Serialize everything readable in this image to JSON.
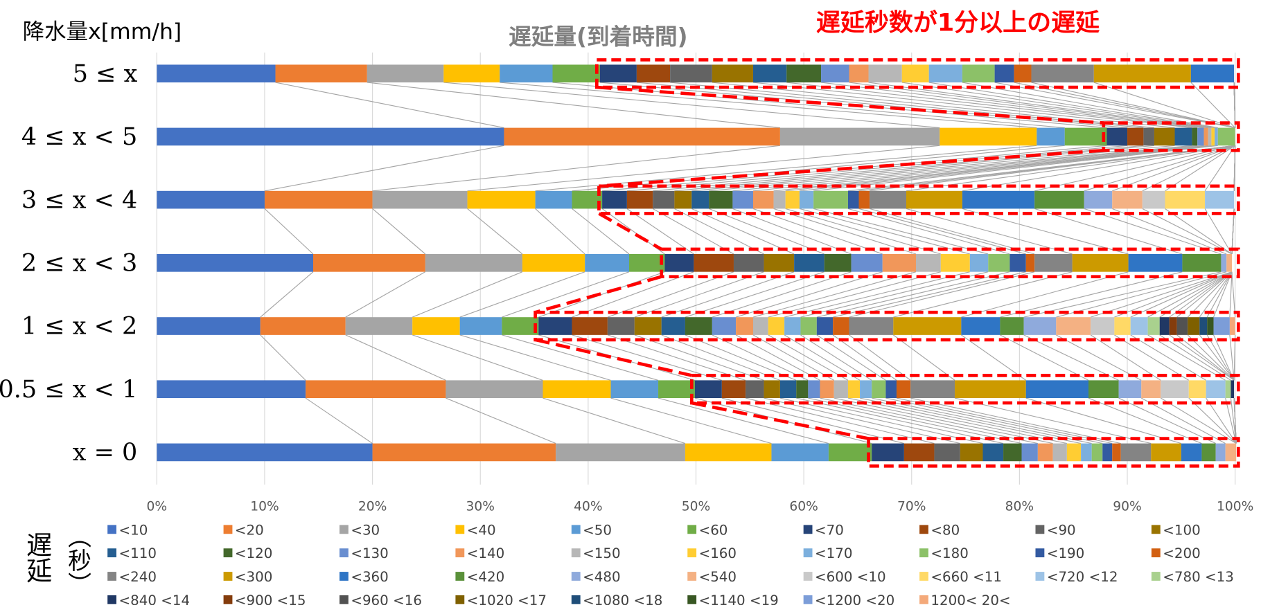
{
  "chart_data": {
    "type": "stacked_barh",
    "title": "遅延量(到着時間)",
    "y_axis_label": "降水量x[mm/h]",
    "annotation": "遅延秒数が1分以上の遅延",
    "legend_title": "遅延",
    "legend_unit": "（秒）",
    "categories": [
      "5 ≤ x",
      "4 ≤ x < 5",
      "3 ≤ x < 4",
      "2 ≤ x < 3",
      "1 ≤ x < 2",
      "0.5 ≤ x < 1",
      "x = 0"
    ],
    "xlim": [
      0,
      100
    ],
    "xticks": [
      {
        "value": 0,
        "label": "0%"
      },
      {
        "value": 10,
        "label": "10%"
      },
      {
        "value": 20,
        "label": "20%"
      },
      {
        "value": 30,
        "label": "30%"
      },
      {
        "value": 40,
        "label": "40%"
      },
      {
        "value": 50,
        "label": "50%"
      },
      {
        "value": 60,
        "label": "60%"
      },
      {
        "value": 70,
        "label": "70%"
      },
      {
        "value": 80,
        "label": "80%"
      },
      {
        "value": 90,
        "label": "90%"
      },
      {
        "value": 100,
        "label": "100%"
      }
    ],
    "grid": true,
    "series_lines": true,
    "series": [
      {
        "name": "<10",
        "color": "#4472C4",
        "values": [
          11,
          32.2,
          10,
          14.5,
          9.6,
          13.8,
          20
        ]
      },
      {
        "name": "<20",
        "color": "#ED7D31",
        "values": [
          8.5,
          25.6,
          10,
          10.4,
          7.9,
          13.0,
          17
        ]
      },
      {
        "name": "<30",
        "color": "#A5A5A5",
        "values": [
          7.1,
          14.8,
          8.8,
          9.0,
          6.2,
          9.0,
          12
        ]
      },
      {
        "name": "<40",
        "color": "#FFC000",
        "values": [
          5.2,
          9.0,
          6.3,
          5.8,
          4.4,
          6.3,
          8
        ]
      },
      {
        "name": "<50",
        "color": "#5B9BD5",
        "values": [
          4.9,
          2.6,
          3.4,
          4.1,
          3.9,
          4.4,
          5.3
        ]
      },
      {
        "name": "<60",
        "color": "#70AD47",
        "values": [
          4.4,
          3.9,
          2.8,
          3.3,
          3.4,
          3.4,
          4
        ]
      },
      {
        "name": "<70",
        "color": "#264478",
        "values": [
          3.4,
          1.9,
          2.3,
          2.7,
          3.1,
          2.5,
          3.0
        ]
      },
      {
        "name": "<80",
        "color": "#9E480E",
        "values": [
          3.1,
          1.5,
          2.4,
          3.7,
          3.3,
          2.2,
          2.8
        ]
      },
      {
        "name": "<90",
        "color": "#636363",
        "values": [
          3.9,
          1.0,
          2.0,
          2.8,
          2.5,
          1.7,
          2.4
        ]
      },
      {
        "name": "<100",
        "color": "#997300",
        "values": [
          3.8,
          1.9,
          1.6,
          2.8,
          2.5,
          1.5,
          2.1
        ]
      },
      {
        "name": "<110",
        "color": "#255E91",
        "values": [
          3.1,
          1.6,
          1.6,
          2.8,
          2.2,
          1.5,
          1.9
        ]
      },
      {
        "name": "<120",
        "color": "#43682B",
        "values": [
          3.2,
          0.5,
          2.2,
          2.5,
          2.5,
          1.1,
          1.7
        ]
      },
      {
        "name": "<130",
        "color": "#698ED0",
        "values": [
          2.6,
          0.6,
          1.9,
          2.9,
          2.2,
          1.1,
          1.5
        ]
      },
      {
        "name": "<140",
        "color": "#F1975A",
        "values": [
          1.8,
          0.4,
          1.9,
          3.1,
          1.6,
          1.3,
          1.4
        ]
      },
      {
        "name": "<150",
        "color": "#B7B7B7",
        "values": [
          3.1,
          0.3,
          1.1,
          2.3,
          1.4,
          1.3,
          1.3
        ]
      },
      {
        "name": "<160",
        "color": "#FFCD33",
        "values": [
          2.5,
          0.3,
          1.3,
          2.7,
          1.5,
          1.1,
          1.3
        ]
      },
      {
        "name": "<170",
        "color": "#7CAFDD",
        "values": [
          3.1,
          0.3,
          1.3,
          1.7,
          1.5,
          1.1,
          1.0
        ]
      },
      {
        "name": "<180",
        "color": "#8CC168",
        "values": [
          3.0,
          1.6,
          3.2,
          2.0,
          1.5,
          1.3,
          1.0
        ]
      },
      {
        "name": "<190",
        "color": "#335AA1",
        "values": [
          1.8,
          0,
          1.0,
          1.5,
          1.5,
          1.0,
          0.9
        ]
      },
      {
        "name": "<200",
        "color": "#D26012",
        "values": [
          1.6,
          0,
          1.0,
          0.8,
          1.5,
          1.3,
          0.8
        ]
      },
      {
        "name": "<240",
        "color": "#848484",
        "values": [
          5.8,
          0,
          3.4,
          3.5,
          4.1,
          4.1,
          2.8
        ]
      },
      {
        "name": "<300",
        "color": "#CC9A00",
        "values": [
          9.0,
          0,
          5.2,
          5.2,
          6.3,
          6.6,
          2.8
        ]
      },
      {
        "name": "<360",
        "color": "#2F75C5",
        "values": [
          4.0,
          0,
          6.7,
          5.0,
          3.6,
          5.8,
          1.9
        ]
      },
      {
        "name": "<420",
        "color": "#5A913A",
        "values": [
          0,
          0,
          4.6,
          3.6,
          2.2,
          2.8,
          1.3
        ]
      },
      {
        "name": "<480",
        "color": "#8FAADC",
        "values": [
          0,
          0,
          2.6,
          0.5,
          3.0,
          2.1,
          0.9
        ]
      },
      {
        "name": "<540",
        "color": "#F4B183",
        "values": [
          0,
          0,
          2.8,
          0.5,
          3.2,
          1.8,
          1.0
        ]
      },
      {
        "name": "<600 <10",
        "color": "#C9C9C9",
        "values": [
          0,
          0,
          2.1,
          0,
          2.2,
          2.6,
          0
        ]
      },
      {
        "name": "<660 <11",
        "color": "#FFD966",
        "values": [
          0,
          0,
          3.7,
          0,
          1.5,
          1.6,
          0
        ]
      },
      {
        "name": "<720 <12",
        "color": "#9DC3E6",
        "values": [
          0,
          0,
          2.7,
          0,
          1.6,
          1.8,
          0
        ]
      },
      {
        "name": "<780 <13",
        "color": "#A9D18E",
        "values": [
          0,
          0,
          0,
          0,
          1.1,
          0.5,
          0
        ]
      },
      {
        "name": "<840 <14",
        "color": "#203864",
        "values": [
          0,
          0,
          0,
          0,
          0.9,
          0.3,
          0
        ]
      },
      {
        "name": "<900 <15",
        "color": "#843C0C",
        "values": [
          0,
          0,
          0,
          0,
          0.7,
          0,
          0
        ]
      },
      {
        "name": "<960 <16",
        "color": "#525252",
        "values": [
          0,
          0,
          0,
          0,
          1.0,
          0,
          0
        ]
      },
      {
        "name": "<1020 <17",
        "color": "#7F6000",
        "values": [
          0,
          0,
          0,
          0,
          1.1,
          0,
          0
        ]
      },
      {
        "name": "<1080 <18",
        "color": "#1F4E79",
        "values": [
          0,
          0,
          0,
          0,
          0.7,
          0,
          0
        ]
      },
      {
        "name": "<1140 <19",
        "color": "#385723",
        "values": [
          0,
          0,
          0,
          0,
          0.6,
          0,
          0
        ]
      },
      {
        "name": "<1200 <20",
        "color": "#7C9DD8",
        "values": [
          0,
          0,
          0,
          0,
          1.5,
          0,
          0
        ]
      },
      {
        "name": "1200< 20<",
        "color": "#F4A97A",
        "values": [
          0,
          0,
          0,
          0,
          0.5,
          0,
          0
        ]
      }
    ]
  }
}
